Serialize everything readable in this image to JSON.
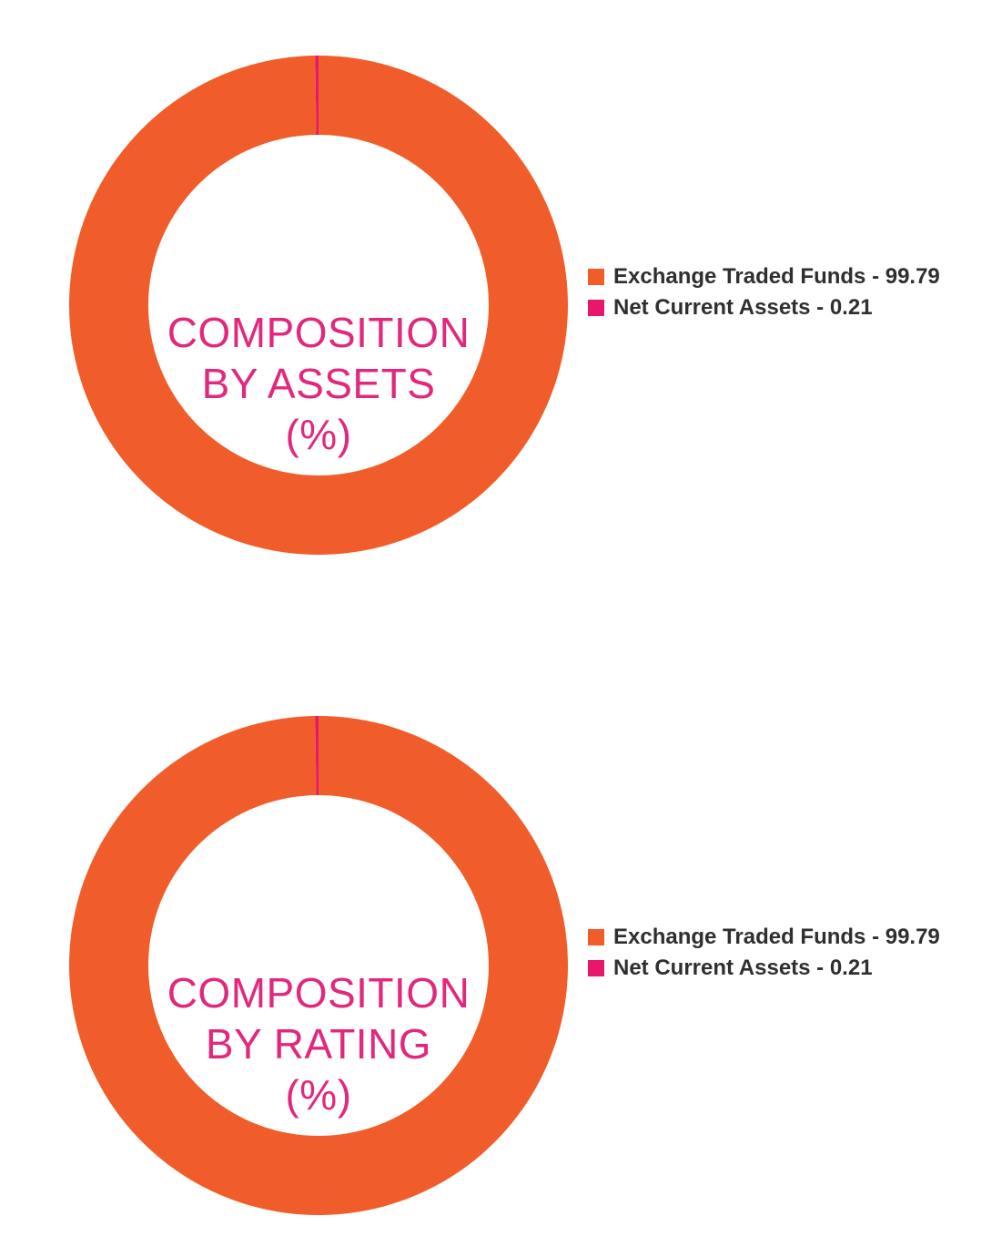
{
  "chart_data": [
    {
      "type": "pie",
      "donut": true,
      "center_label_lines": [
        "COMPOSITION",
        "BY ASSETS",
        "(%)"
      ],
      "categories": [
        "Exchange Traded Funds",
        "Net Current Assets"
      ],
      "values": [
        99.79,
        0.21
      ],
      "colors": [
        "#f15d2a",
        "#e8176b"
      ],
      "legend_labels": [
        "Exchange Traded Funds - 99.79",
        "Net Current Assets - 0.21"
      ],
      "legend_position": "right"
    },
    {
      "type": "pie",
      "donut": true,
      "center_label_lines": [
        "COMPOSITION",
        "BY RATING",
        "(%)"
      ],
      "categories": [
        "Exchange Traded Funds",
        "Net Current Assets"
      ],
      "values": [
        99.79,
        0.21
      ],
      "colors": [
        "#f15d2a",
        "#e8176b"
      ],
      "legend_labels": [
        "Exchange Traded Funds - 99.79",
        "Net Current Assets - 0.21"
      ],
      "legend_position": "right"
    }
  ],
  "text_color": "#e2287c"
}
